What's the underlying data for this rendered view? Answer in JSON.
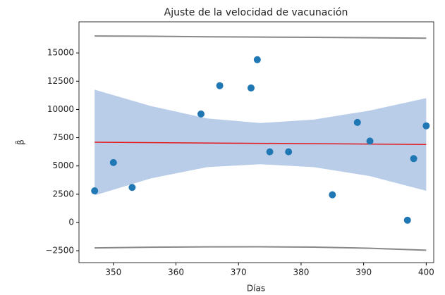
{
  "chart_data": {
    "type": "scatter",
    "title": "Ajuste de la velocidad de vacunación",
    "xlabel": "Días",
    "ylabel": "β̃",
    "x": [
      347,
      350,
      353,
      364,
      367,
      372,
      373,
      375,
      378,
      385,
      389,
      391,
      397,
      398,
      400
    ],
    "values": [
      2800,
      5300,
      3100,
      9600,
      12100,
      11900,
      14400,
      6250,
      6250,
      2450,
      8850,
      7200,
      200,
      5650,
      8550
    ],
    "color": "#1f77b4",
    "fit": {
      "x": [
        347,
        400
      ],
      "values": [
        7100,
        6900
      ],
      "color": "#e41a1c"
    },
    "band": {
      "x": [
        347,
        356,
        365,
        373.5,
        382,
        391,
        400
      ],
      "upper": [
        11750,
        10300,
        9200,
        8800,
        9100,
        9900,
        11000
      ],
      "lower": [
        2400,
        3900,
        4900,
        5150,
        4900,
        4100,
        2800
      ],
      "color": "#b9cde9"
    },
    "prediction": {
      "x": [
        347,
        356,
        365,
        373.5,
        382,
        391,
        400
      ],
      "upper": [
        16500,
        16470,
        16430,
        16400,
        16380,
        16340,
        16300
      ],
      "lower": [
        -2250,
        -2190,
        -2160,
        -2150,
        -2180,
        -2280,
        -2450
      ],
      "color": "#888888"
    },
    "xlim": [
      344.5,
      401.2
    ],
    "ylim": [
      -3550,
      17750
    ],
    "xticks": [
      350,
      360,
      370,
      380,
      390,
      400
    ],
    "yticks": [
      {
        "value": -2500,
        "label": "−2500"
      },
      0,
      2500,
      5000,
      7500,
      10000,
      12500,
      15000
    ]
  }
}
